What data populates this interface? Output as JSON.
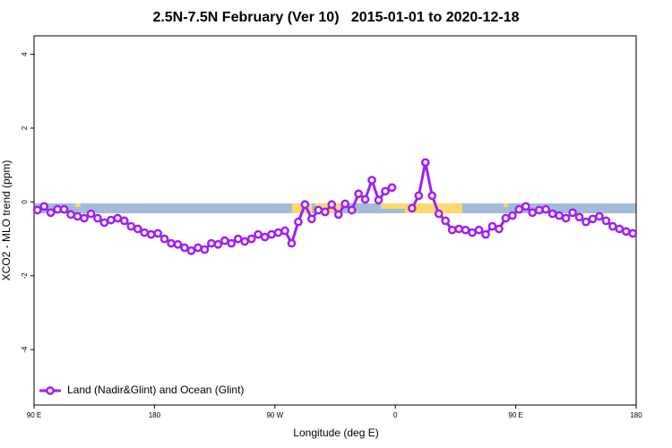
{
  "chart_data": {
    "type": "line",
    "title": "2.5N-7.5N February (Ver 10)   2015-01-01 to 2020-12-18",
    "x_label": "Longitude (deg E)",
    "y_label": "XCO2 - MLO trend (ppm)",
    "xlim": [
      90,
      540
    ],
    "xticks": [
      {
        "value": 90,
        "label": "90 E"
      },
      {
        "value": 180,
        "label": "180"
      },
      {
        "value": 270,
        "label": "90 W"
      },
      {
        "value": 360,
        "label": "0"
      },
      {
        "value": 450,
        "label": "90 E"
      },
      {
        "value": 540,
        "label": "180"
      }
    ],
    "ylim": [
      -5.5,
      4.5
    ],
    "yticks": [
      -4,
      -2,
      0,
      2,
      4
    ],
    "legend": "bottomleft",
    "x": [
      92.5,
      97.5,
      102.5,
      107.5,
      112.5,
      117.5,
      122.5,
      127.5,
      132.5,
      137.5,
      142.5,
      147.5,
      152.5,
      157.5,
      162.5,
      167.5,
      172.5,
      177.5,
      182.5,
      187.5,
      192.5,
      197.5,
      202.5,
      207.5,
      212.5,
      217.5,
      222.5,
      227.5,
      232.5,
      237.5,
      242.5,
      247.5,
      252.5,
      257.5,
      262.5,
      267.5,
      272.5,
      277.5,
      282.5,
      287.5,
      292.5,
      297.5,
      302.5,
      307.5,
      312.5,
      317.5,
      322.5,
      327.5,
      332.5,
      337.5,
      342.5,
      347.5,
      352.5,
      357.5,
      362.5,
      367.5,
      372.5,
      377.5,
      382.5,
      387.5,
      392.5,
      397.5,
      402.5,
      407.5,
      412.5,
      417.5,
      422.5,
      427.5,
      432.5,
      437.5,
      442.5,
      447.5,
      452.5,
      457.5,
      462.5,
      467.5,
      472.5,
      477.5,
      482.5,
      487.5,
      492.5,
      497.5,
      502.5,
      507.5,
      512.5,
      517.5,
      522.5,
      527.5,
      532.5,
      537.5
    ],
    "series": [
      {
        "name": "Land (Nadir&Glint) and Ocean (Glint)",
        "color": "#a020f0",
        "values": [
          -0.22,
          -0.12,
          -0.29,
          -0.2,
          -0.2,
          -0.34,
          -0.39,
          -0.44,
          -0.32,
          -0.44,
          -0.56,
          -0.49,
          -0.44,
          -0.51,
          -0.66,
          -0.73,
          -0.83,
          -0.88,
          -0.85,
          -1.0,
          -1.12,
          -1.15,
          -1.24,
          -1.32,
          -1.24,
          -1.29,
          -1.12,
          -1.15,
          -1.05,
          -1.12,
          -1.0,
          -1.07,
          -1.0,
          -0.88,
          -0.95,
          -0.88,
          -0.83,
          -0.78,
          -1.12,
          -0.54,
          -0.07,
          -0.46,
          -0.22,
          -0.27,
          -0.07,
          -0.34,
          -0.05,
          -0.22,
          0.22,
          0.07,
          0.59,
          0.05,
          0.29,
          0.39,
          null,
          null,
          -0.17,
          0.17,
          1.07,
          0.17,
          -0.32,
          -0.51,
          -0.76,
          -0.73,
          -0.76,
          -0.83,
          -0.76,
          -0.88,
          -0.66,
          -0.73,
          -0.44,
          -0.37,
          -0.2,
          -0.12,
          -0.29,
          -0.22,
          -0.2,
          -0.32,
          -0.37,
          -0.44,
          -0.29,
          -0.41,
          -0.54,
          -0.46,
          -0.39,
          -0.51,
          -0.66,
          -0.73,
          -0.8,
          -0.85
        ]
      }
    ]
  }
}
